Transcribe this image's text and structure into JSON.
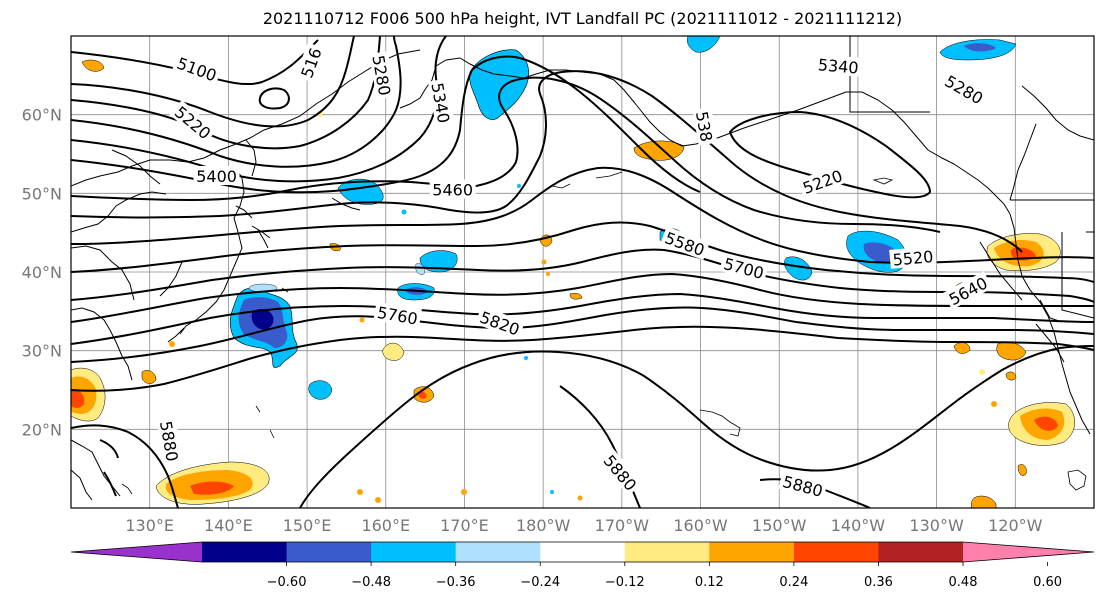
{
  "title": "2021110712 F006 500 hPa height, IVT Landfall PC (2021111012 - 2021111212)",
  "map": {
    "lon_range": [
      120,
      250
    ],
    "lat_range": [
      10,
      70
    ],
    "lat_ticks": [
      {
        "value": 20,
        "label": "20°N"
      },
      {
        "value": 30,
        "label": "30°N"
      },
      {
        "value": 40,
        "label": "40°N"
      },
      {
        "value": 50,
        "label": "50°N"
      },
      {
        "value": 60,
        "label": "60°N"
      }
    ],
    "lon_ticks": [
      {
        "value": 130,
        "label": "130°E"
      },
      {
        "value": 140,
        "label": "140°E"
      },
      {
        "value": 150,
        "label": "150°E"
      },
      {
        "value": 160,
        "label": "160°E"
      },
      {
        "value": 170,
        "label": "170°E"
      },
      {
        "value": 180,
        "label": "180°W"
      },
      {
        "value": 190,
        "label": "170°W"
      },
      {
        "value": 200,
        "label": "160°W"
      },
      {
        "value": 210,
        "label": "150°W"
      },
      {
        "value": 220,
        "label": "140°W"
      },
      {
        "value": 230,
        "label": "130°W"
      },
      {
        "value": 240,
        "label": "120°W"
      }
    ],
    "contour_labels": [
      {
        "text": "5100",
        "lon": 136,
        "lat": 65.8,
        "rot": 20
      },
      {
        "text": "516",
        "lon": 150.5,
        "lat": 66.6,
        "rot": -70
      },
      {
        "text": "5280",
        "lon": 159.5,
        "lat": 65,
        "rot": 80
      },
      {
        "text": "5340",
        "lon": 167,
        "lat": 61.5,
        "rot": 80
      },
      {
        "text": "5220",
        "lon": 135.5,
        "lat": 59,
        "rot": 40
      },
      {
        "text": "5400",
        "lon": 138.5,
        "lat": 52.2,
        "rot": 0
      },
      {
        "text": "5460",
        "lon": 168.5,
        "lat": 50.5,
        "rot": 0
      },
      {
        "text": "538",
        "lon": 200.5,
        "lat": 58.5,
        "rot": 80
      },
      {
        "text": "5340",
        "lon": 217.5,
        "lat": 66.2,
        "rot": 5
      },
      {
        "text": "5280",
        "lon": 233.5,
        "lat": 63.2,
        "rot": 30
      },
      {
        "text": "5220",
        "lon": 215.5,
        "lat": 51.5,
        "rot": -20
      },
      {
        "text": "5580",
        "lon": 198,
        "lat": 43.6,
        "rot": 20
      },
      {
        "text": "5700",
        "lon": 205.5,
        "lat": 40.5,
        "rot": 15
      },
      {
        "text": "5520",
        "lon": 227,
        "lat": 41.8,
        "rot": -5
      },
      {
        "text": "5640",
        "lon": 234,
        "lat": 37.6,
        "rot": -28
      },
      {
        "text": "5760",
        "lon": 161.5,
        "lat": 34.5,
        "rot": 10
      },
      {
        "text": "5820",
        "lon": 174.5,
        "lat": 33.5,
        "rot": 20
      },
      {
        "text": "5880",
        "lon": 132.5,
        "lat": 18.5,
        "rot": 80
      },
      {
        "text": "5880",
        "lon": 189.8,
        "lat": 14.5,
        "rot": 50
      },
      {
        "text": "5880",
        "lon": 213,
        "lat": 12.8,
        "rot": 15
      }
    ]
  },
  "colorbar": {
    "colors": [
      "#9932cc",
      "#00008b",
      "#3a5bcc",
      "#00bfff",
      "#b0e0ff",
      "#ffffff",
      "#ffeb80",
      "#ffa500",
      "#ff4500",
      "#b22222",
      "#ff80aa"
    ],
    "tick_labels": [
      "−0.60",
      "−0.48",
      "−0.36",
      "−0.24",
      "−0.12",
      "0.12",
      "0.24",
      "0.36",
      "0.48",
      "0.60"
    ]
  }
}
